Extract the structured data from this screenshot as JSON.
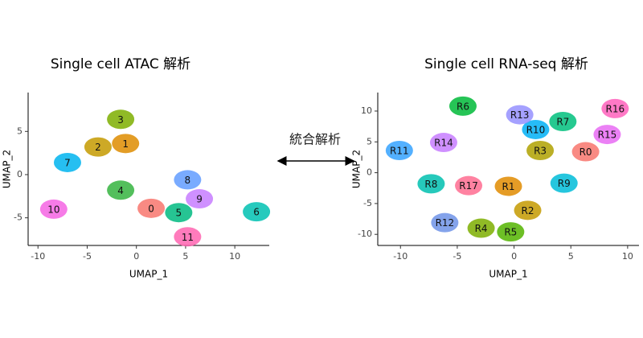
{
  "chart_data": [
    {
      "type": "scatter",
      "title": "Single cell ATAC 解析",
      "xlabel": "UMAP_1",
      "ylabel": "UMAP_2",
      "xlim": [
        -11,
        13.5
      ],
      "ylim": [
        -8.2,
        9.5
      ],
      "xticks": [
        -10,
        -5,
        0,
        5,
        10
      ],
      "yticks": [
        -5,
        0,
        5
      ],
      "series": [
        {
          "name": "0",
          "color": "#F8766D",
          "x": [
            1.5
          ],
          "values": [
            -3.9
          ]
        },
        {
          "name": "1",
          "color": "#DE8C00",
          "x": [
            -1.1
          ],
          "values": [
            3.6
          ]
        },
        {
          "name": "2",
          "color": "#C49A00",
          "x": [
            -3.9
          ],
          "values": [
            3.2
          ]
        },
        {
          "name": "3",
          "color": "#7CAE00",
          "x": [
            -1.6
          ],
          "values": [
            6.4
          ]
        },
        {
          "name": "4",
          "color": "#35B43F",
          "x": [
            -1.6
          ],
          "values": [
            -1.8
          ]
        },
        {
          "name": "5",
          "color": "#00BA80",
          "x": [
            4.3
          ],
          "values": [
            -4.4
          ]
        },
        {
          "name": "6",
          "color": "#00C1B2",
          "x": [
            12.2
          ],
          "values": [
            -4.3
          ]
        },
        {
          "name": "7",
          "color": "#00B4EF",
          "x": [
            -7.0
          ],
          "values": [
            1.4
          ]
        },
        {
          "name": "8",
          "color": "#619CFF",
          "x": [
            5.2
          ],
          "values": [
            -0.6
          ]
        },
        {
          "name": "9",
          "color": "#C77CFF",
          "x": [
            6.4
          ],
          "values": [
            -2.8
          ]
        },
        {
          "name": "10",
          "color": "#F564E3",
          "x": [
            -8.4
          ],
          "values": [
            -4.0
          ]
        },
        {
          "name": "11",
          "color": "#FF64B0",
          "x": [
            5.2
          ],
          "values": [
            -7.2
          ]
        }
      ]
    },
    {
      "type": "scatter",
      "title": "Single cell RNA-seq 解析",
      "xlabel": "UMAP_1",
      "ylabel": "UMAP_2",
      "xlim": [
        -12,
        11
      ],
      "ylim": [
        -11.8,
        13
      ],
      "xticks": [
        -10,
        -5,
        0,
        5,
        10
      ],
      "yticks": [
        -10,
        -5,
        0,
        5,
        10
      ],
      "series": [
        {
          "name": "R0",
          "color": "#F8766D",
          "x": [
            6.3
          ],
          "values": [
            3.4
          ]
        },
        {
          "name": "R1",
          "color": "#E08B00",
          "x": [
            -0.5
          ],
          "values": [
            -2.2
          ]
        },
        {
          "name": "R2",
          "color": "#C49A00",
          "x": [
            1.2
          ],
          "values": [
            -6.1
          ]
        },
        {
          "name": "R3",
          "color": "#AFA100",
          "x": [
            2.3
          ],
          "values": [
            3.6
          ]
        },
        {
          "name": "R4",
          "color": "#7CAE00",
          "x": [
            -2.9
          ],
          "values": [
            -9.0
          ]
        },
        {
          "name": "R5",
          "color": "#53B400",
          "x": [
            -0.3
          ],
          "values": [
            -9.6
          ]
        },
        {
          "name": "R6",
          "color": "#00BA38",
          "x": [
            -4.5
          ],
          "values": [
            10.8
          ]
        },
        {
          "name": "R7",
          "color": "#00BF7D",
          "x": [
            4.3
          ],
          "values": [
            8.3
          ]
        },
        {
          "name": "R8",
          "color": "#00C0AF",
          "x": [
            -7.3
          ],
          "values": [
            -1.8
          ]
        },
        {
          "name": "R9",
          "color": "#00BCD8",
          "x": [
            4.4
          ],
          "values": [
            -1.7
          ]
        },
        {
          "name": "R10",
          "color": "#00B0F6",
          "x": [
            1.9
          ],
          "values": [
            7.0
          ]
        },
        {
          "name": "R11",
          "color": "#35A2FF",
          "x": [
            -10.1
          ],
          "values": [
            3.6
          ]
        },
        {
          "name": "R12",
          "color": "#6F93E8",
          "x": [
            -6.1
          ],
          "values": [
            -8.1
          ]
        },
        {
          "name": "R13",
          "color": "#9590FF",
          "x": [
            0.5
          ],
          "values": [
            9.4
          ]
        },
        {
          "name": "R14",
          "color": "#C77CFF",
          "x": [
            -6.2
          ],
          "values": [
            4.9
          ]
        },
        {
          "name": "R15",
          "color": "#E76BF3",
          "x": [
            8.2
          ],
          "values": [
            6.2
          ]
        },
        {
          "name": "R16",
          "color": "#FF62BC",
          "x": [
            8.9
          ],
          "values": [
            10.4
          ]
        },
        {
          "name": "R17",
          "color": "#FF6C91",
          "x": [
            -4.0
          ],
          "values": [
            -2.1
          ]
        }
      ]
    }
  ],
  "center_label": "統合解析"
}
